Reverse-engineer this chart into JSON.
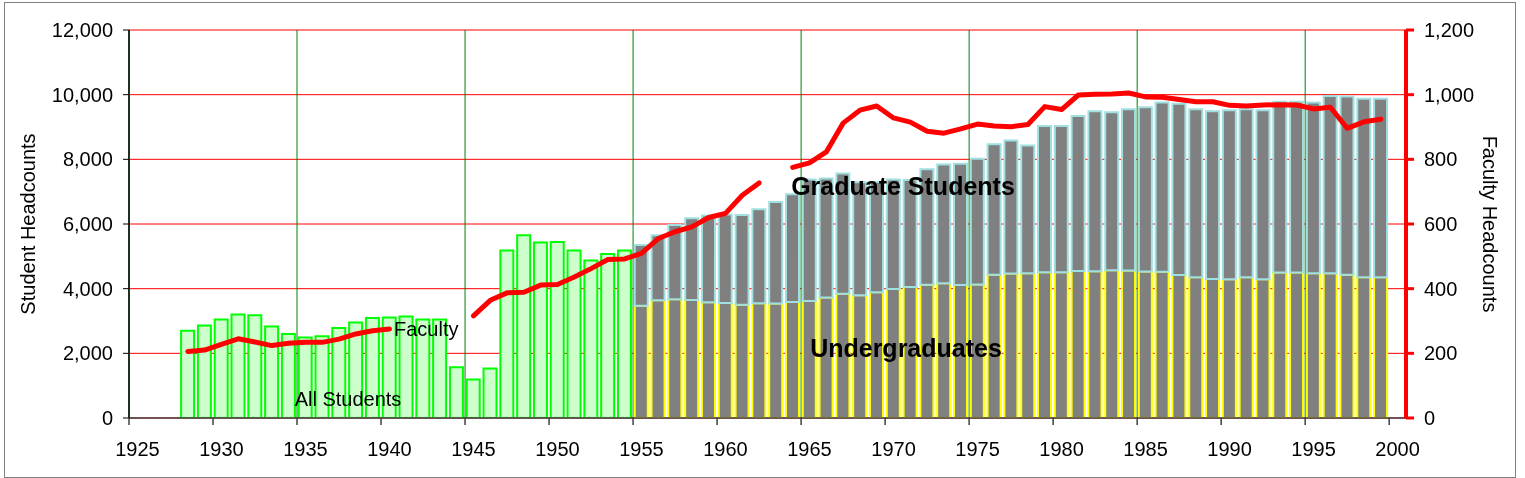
{
  "chart_data": {
    "type": "bar",
    "stacked": true,
    "grid": true,
    "ylabel": "Student Headcounts",
    "y2label": "Faculty Headcounts",
    "ylim": [
      0,
      12000
    ],
    "yticks": [
      0,
      {
        "value": 2000,
        "label": "2,000"
      },
      {
        "value": 4000,
        "label": "4,000"
      },
      {
        "value": 6000,
        "label": "6,000"
      },
      {
        "value": 8000,
        "label": "8,000"
      },
      {
        "value": 10000,
        "label": "10,000"
      },
      {
        "value": 12000,
        "label": "12,000"
      }
    ],
    "y2lim": [
      0,
      1200
    ],
    "y2ticks": [
      0,
      200,
      400,
      600,
      800,
      {
        "value": 1000,
        "label": "1,000"
      },
      {
        "value": 1200,
        "label": "1,200"
      }
    ],
    "categories": [
      "1925",
      null,
      null,
      null,
      null,
      "1930",
      null,
      null,
      null,
      null,
      "1935",
      null,
      null,
      null,
      null,
      "1940",
      null,
      null,
      null,
      null,
      "1945",
      null,
      null,
      null,
      null,
      "1950",
      null,
      null,
      null,
      null,
      "1955",
      null,
      null,
      null,
      null,
      "1960",
      null,
      null,
      null,
      null,
      "1965",
      null,
      null,
      null,
      null,
      "1970",
      null,
      null,
      null,
      null,
      "1975",
      null,
      null,
      null,
      null,
      "1980",
      null,
      null,
      null,
      null,
      "1985",
      null,
      null,
      null,
      null,
      "1990",
      null,
      null,
      null,
      null,
      "1995",
      null,
      null,
      null,
      null,
      "2000"
    ],
    "series": [
      {
        "name": "All Students",
        "color": "#ccffcc",
        "values": [
          null,
          null,
          null,
          2700,
          2860,
          3050,
          3200,
          3180,
          2830,
          2600,
          2490,
          2530,
          2780,
          2950,
          3090,
          3110,
          3140,
          3050,
          3050,
          1570,
          1190,
          1530,
          5180,
          5650,
          5430,
          5440,
          5180,
          4870,
          5070,
          5180,
          null,
          null,
          null,
          null,
          null,
          null,
          null,
          null,
          null,
          null,
          null,
          null,
          null,
          null,
          null,
          null,
          null,
          null,
          null,
          null,
          null,
          null,
          null,
          null,
          null,
          null,
          null,
          null,
          null,
          null,
          null,
          null,
          null,
          null,
          null,
          null,
          null,
          null,
          null,
          null,
          null,
          null,
          null,
          null,
          null,
          null
        ]
      },
      {
        "name": "Undergraduates",
        "color": "#808080",
        "values": [
          null,
          null,
          null,
          null,
          null,
          null,
          null,
          null,
          null,
          null,
          null,
          null,
          null,
          null,
          null,
          null,
          null,
          null,
          null,
          null,
          null,
          null,
          null,
          null,
          null,
          null,
          null,
          null,
          null,
          null,
          3470,
          3640,
          3670,
          3650,
          3580,
          3560,
          3500,
          3550,
          3540,
          3590,
          3620,
          3730,
          3840,
          3800,
          3890,
          3990,
          4050,
          4120,
          4170,
          4110,
          4130,
          4430,
          4470,
          4480,
          4510,
          4510,
          4550,
          4540,
          4570,
          4560,
          4530,
          4520,
          4420,
          4350,
          4300,
          4290,
          4350,
          4290,
          4500,
          4500,
          4480,
          4480,
          4430,
          4350,
          4350,
          null
        ]
      },
      {
        "name": "Graduate Students",
        "color": "#808080",
        "values": [
          null,
          null,
          null,
          null,
          null,
          null,
          null,
          null,
          null,
          null,
          null,
          null,
          null,
          null,
          null,
          null,
          null,
          null,
          null,
          null,
          null,
          null,
          null,
          null,
          null,
          null,
          null,
          null,
          null,
          null,
          1880,
          2010,
          2300,
          2530,
          2680,
          2730,
          2780,
          2910,
          3140,
          3330,
          3760,
          3680,
          3720,
          3490,
          3410,
          3390,
          3310,
          3570,
          3670,
          3750,
          3890,
          4040,
          4110,
          3950,
          4520,
          4520,
          4790,
          4950,
          4890,
          4990,
          5080,
          5240,
          5300,
          5200,
          5190,
          5230,
          5200,
          5230,
          5280,
          5280,
          5280,
          5480,
          5510,
          5520,
          5520,
          null
        ]
      },
      {
        "name": "Faculty",
        "type": "line",
        "axis": "y2",
        "color": "#ff0000",
        "values": [
          null,
          null,
          null,
          206,
          210,
          228,
          245,
          235,
          224,
          231,
          234,
          234,
          244,
          260,
          270,
          275,
          null,
          null,
          null,
          null,
          316,
          364,
          387,
          389,
          411,
          413,
          436,
          462,
          490,
          492,
          509,
          555,
          576,
          591,
          620,
          633,
          689,
          727,
          null,
          775,
          789,
          823,
          912,
          952,
          965,
          928,
          915,
          887,
          881,
          894,
          909,
          903,
          901,
          908,
          963,
          954,
          999,
          1001,
          1002,
          1005,
          993,
          992,
          985,
          978,
          978,
          967,
          965,
          968,
          969,
          968,
          956,
          961,
          896,
          916,
          924,
          null
        ]
      }
    ]
  }
}
